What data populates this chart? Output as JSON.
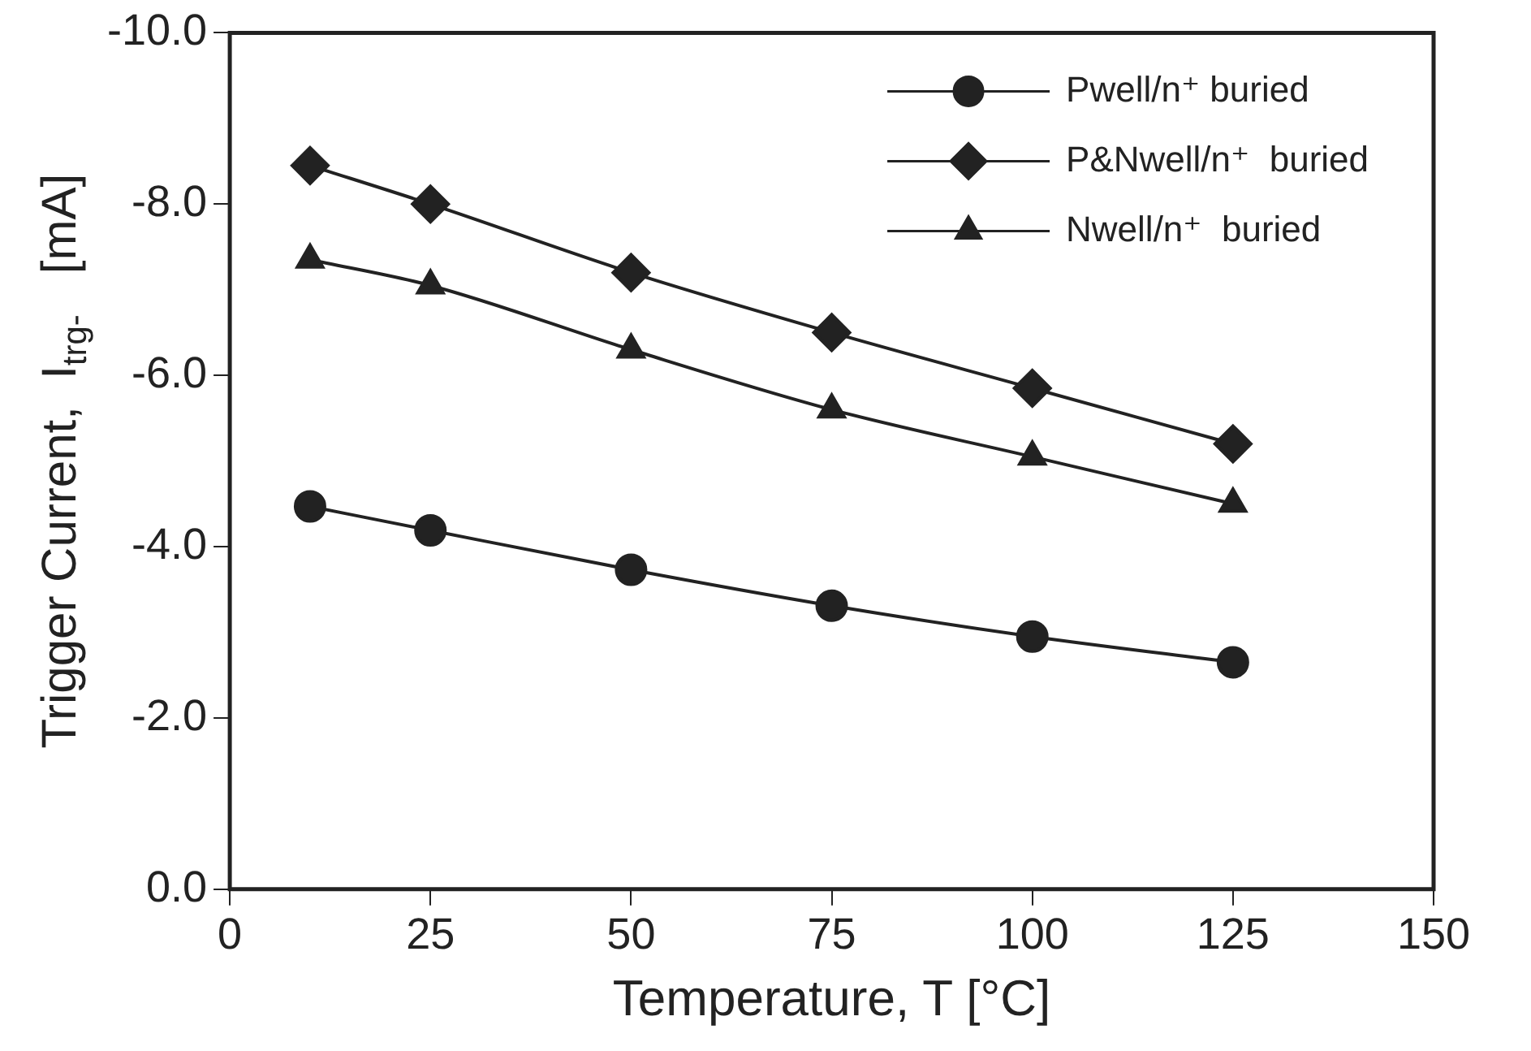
{
  "chart_data": {
    "type": "line",
    "xlabel": "Temperature, T [°C]",
    "ylabel": "Trigger Current,  I$_{trg-}$   [mA]",
    "x": [
      10,
      25,
      50,
      75,
      100,
      125
    ],
    "series": [
      {
        "name": "Pwell/n⁺ buried",
        "color": "#222222",
        "marker": "circle",
        "values": [
          -4.47,
          -4.19,
          -3.73,
          -3.31,
          -2.95,
          -2.65
        ]
      },
      {
        "name": "P&Nwell/n⁺  buried",
        "color": "#222222",
        "marker": "diamond",
        "values": [
          -8.45,
          -8.0,
          -7.2,
          -6.5,
          -5.85,
          -5.2
        ]
      },
      {
        "name": "Nwell/n⁺  buried",
        "color": "#222222",
        "marker": "triangle",
        "values": [
          -7.35,
          -7.05,
          -6.3,
          -5.6,
          -5.05,
          -4.5
        ]
      }
    ],
    "xlim": [
      0,
      150
    ],
    "xticks": [
      0,
      25,
      50,
      75,
      100,
      125,
      150
    ],
    "ylim": [
      0,
      -10
    ],
    "yticks": [
      {
        "value": 0,
        "label": "0.0"
      },
      {
        "value": -2,
        "label": "-2.0"
      },
      {
        "value": -4,
        "label": "-4.0"
      },
      {
        "value": -6,
        "label": "-6.0"
      },
      {
        "value": -8,
        "label": "-8.0"
      },
      {
        "value": -10,
        "label": "-10.0"
      }
    ],
    "grid": false,
    "legend": "top right",
    "line_style": "solid"
  }
}
